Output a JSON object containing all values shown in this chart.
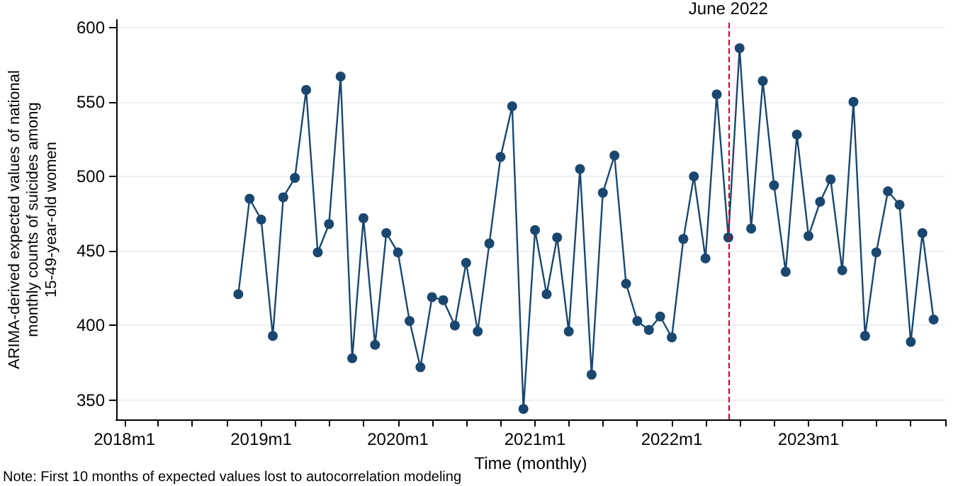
{
  "chart_data": {
    "type": "line",
    "xlabel": "Time (monthly)",
    "ylabel": "ARIMA-derived expected values of national monthly counts of suicides among 15-49-year-old women",
    "x": [
      "2018-11",
      "2018-12",
      "2019-01",
      "2019-02",
      "2019-03",
      "2019-04",
      "2019-05",
      "2019-06",
      "2019-07",
      "2019-08",
      "2019-09",
      "2019-10",
      "2019-11",
      "2019-12",
      "2020-01",
      "2020-02",
      "2020-03",
      "2020-04",
      "2020-05",
      "2020-06",
      "2020-07",
      "2020-08",
      "2020-09",
      "2020-10",
      "2020-11",
      "2020-12",
      "2021-01",
      "2021-02",
      "2021-03",
      "2021-04",
      "2021-05",
      "2021-06",
      "2021-07",
      "2021-08",
      "2021-09",
      "2021-10",
      "2021-11",
      "2021-12",
      "2022-01",
      "2022-02",
      "2022-03",
      "2022-04",
      "2022-05",
      "2022-06",
      "2022-07",
      "2022-08",
      "2022-09",
      "2022-10",
      "2022-11",
      "2022-12",
      "2023-01",
      "2023-02",
      "2023-03",
      "2023-04",
      "2023-05",
      "2023-06",
      "2023-07",
      "2023-08",
      "2023-09",
      "2023-10",
      "2023-11",
      "2023-12"
    ],
    "series": [
      {
        "color": "#1a476f",
        "values": [
          421,
          485,
          471,
          393,
          486,
          499,
          558,
          449,
          468,
          567,
          378,
          472,
          387,
          462,
          449,
          403,
          372,
          419,
          417,
          400,
          442,
          396,
          455,
          513,
          547,
          344,
          464,
          421,
          459,
          396,
          505,
          367,
          489,
          514,
          428,
          403,
          397,
          406,
          392,
          458,
          500,
          445,
          555,
          459,
          586,
          465,
          564,
          494,
          436,
          528,
          460,
          483,
          498,
          437,
          550,
          393,
          449,
          490,
          481,
          389,
          462,
          404
        ]
      }
    ],
    "xlim": [
      "2017-12-10",
      "2024-01-01"
    ],
    "xticks": [
      {
        "value": "2018-01",
        "label": "2018m1"
      },
      {
        "value": "2018-04",
        "label": null
      },
      {
        "value": "2018-07",
        "label": null
      },
      {
        "value": "2018-10",
        "label": null
      },
      {
        "value": "2019-01",
        "label": "2019m1"
      },
      {
        "value": "2019-04",
        "label": null
      },
      {
        "value": "2019-07",
        "label": null
      },
      {
        "value": "2019-10",
        "label": null
      },
      {
        "value": "2020-01",
        "label": "2020m1"
      },
      {
        "value": "2020-04",
        "label": null
      },
      {
        "value": "2020-07",
        "label": null
      },
      {
        "value": "2020-10",
        "label": null
      },
      {
        "value": "2021-01",
        "label": "2021m1"
      },
      {
        "value": "2021-04",
        "label": null
      },
      {
        "value": "2021-07",
        "label": null
      },
      {
        "value": "2021-10",
        "label": null
      },
      {
        "value": "2022-01",
        "label": "2022m1"
      },
      {
        "value": "2022-04",
        "label": null
      },
      {
        "value": "2022-07",
        "label": null
      },
      {
        "value": "2022-10",
        "label": null
      },
      {
        "value": "2023-01",
        "label": "2023m1"
      },
      {
        "value": "2023-04",
        "label": null
      },
      {
        "value": "2023-07",
        "label": null
      },
      {
        "value": "2023-10",
        "label": null
      },
      {
        "value": "2024-01",
        "label": null
      }
    ],
    "ylim": [
      337,
      605
    ],
    "yticks": [
      350,
      400,
      450,
      500,
      550,
      600
    ],
    "grid": "y",
    "marker": "circle",
    "line_style": "solid",
    "ref_lines": [
      {
        "axis": "x",
        "value": "2022-06",
        "label": "June 2022",
        "color": "#c10534",
        "line_style": "dashed"
      }
    ],
    "annotations": [
      "Note: First 10 months of expected values lost to autocorrelation modeling"
    ]
  }
}
